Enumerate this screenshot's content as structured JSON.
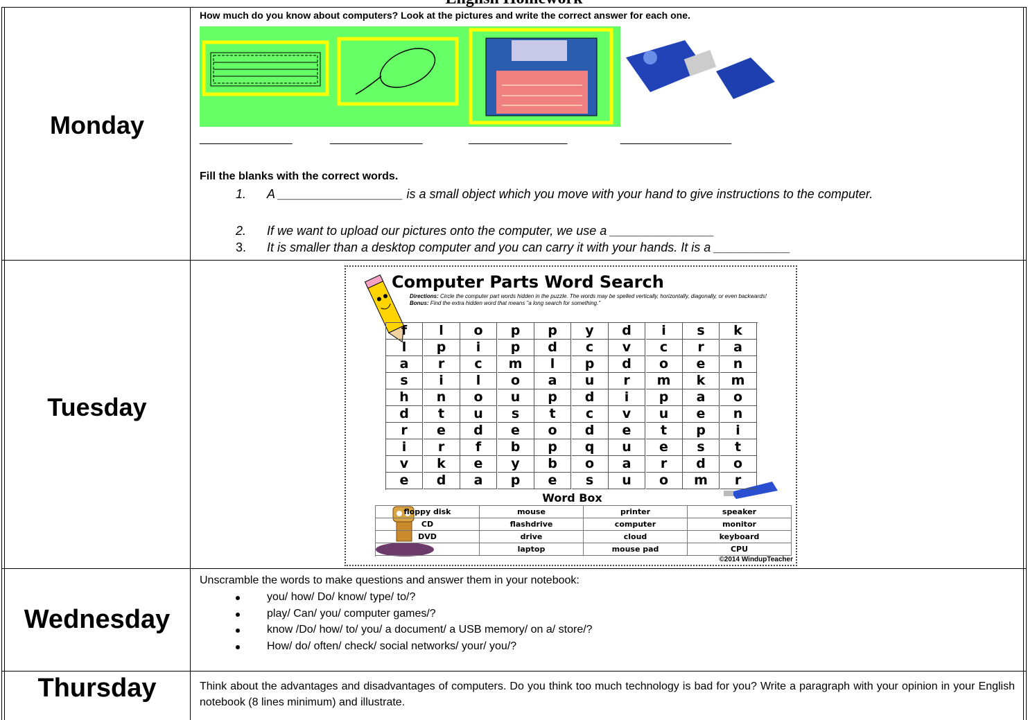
{
  "title": "English Homework",
  "monday": {
    "label": "Monday",
    "question": "How much do you know about computers? Look at the pictures and write the correct answer for each one.",
    "blanks": [
      "_______________",
      "_______________",
      "________________",
      "__________________"
    ],
    "fill_title": "Fill the blanks with the correct words.",
    "items": [
      {
        "number": "1.",
        "text": "A __________________ is a small object which you move with your hand to give instructions to the computer."
      },
      {
        "number": "2.",
        "text": "If we want to upload our pictures onto the computer, we use a _______________"
      },
      {
        "number": "3.",
        "text": "It is smaller than a desktop computer and you can carry it with your hands. It is a ___________"
      }
    ]
  },
  "tuesday": {
    "label": "Tuesday",
    "puzzle": {
      "title": "Computer Parts Word Search",
      "directions_label": "Directions:",
      "directions": "Circle the computer part words hidden in the puzzle. The words may be spelled vertically, horizontally, diagonally, or even backwards!",
      "bonus_label": "Bonus:",
      "bonus": "Find the extra hidden word that means \"a long search for something.\"",
      "grid": [
        [
          "f",
          "l",
          "o",
          "p",
          "p",
          "y",
          "d",
          "i",
          "s",
          "k"
        ],
        [
          "l",
          "p",
          "i",
          "p",
          "d",
          "c",
          "v",
          "c",
          "r",
          "a"
        ],
        [
          "a",
          "r",
          "c",
          "m",
          "l",
          "p",
          "d",
          "o",
          "e",
          "n"
        ],
        [
          "s",
          "i",
          "l",
          "o",
          "a",
          "u",
          "r",
          "m",
          "k",
          "m"
        ],
        [
          "h",
          "n",
          "o",
          "u",
          "p",
          "d",
          "i",
          "p",
          "a",
          "o"
        ],
        [
          "d",
          "t",
          "u",
          "s",
          "t",
          "c",
          "v",
          "u",
          "e",
          "n"
        ],
        [
          "r",
          "e",
          "d",
          "e",
          "o",
          "d",
          "e",
          "t",
          "p",
          "i"
        ],
        [
          "i",
          "r",
          "f",
          "b",
          "p",
          "q",
          "u",
          "e",
          "s",
          "t"
        ],
        [
          "v",
          "k",
          "e",
          "y",
          "b",
          "o",
          "a",
          "r",
          "d",
          "o"
        ],
        [
          "e",
          "d",
          "a",
          "p",
          "e",
          "s",
          "u",
          "o",
          "m",
          "r"
        ]
      ],
      "word_box_title": "Word Box",
      "word_box": [
        [
          "floppy disk",
          "mouse",
          "printer",
          "speaker"
        ],
        [
          "CD",
          "flashdrive",
          "computer",
          "monitor"
        ],
        [
          "DVD",
          "drive",
          "cloud",
          "keyboard"
        ],
        [
          null,
          "laptop",
          "mouse pad",
          "CPU"
        ]
      ],
      "copyright": "©2014 WindupTeacher"
    }
  },
  "wednesday": {
    "label": "Wednesday",
    "instruction": "Unscramble the words to make questions and answer them in your notebook:",
    "bullets": [
      "you/ how/ Do/ know/ type/ to/?",
      "play/ Can/ you/ computer games/?",
      "know /Do/ how/ to/ you/ a document/ a USB memory/ on a/ store/?",
      "How/ do/ often/ check/ social networks/ your/ you/?"
    ]
  },
  "thursday": {
    "label": "Thursday",
    "text": "Think about the advantages and disadvantages of computers. Do you think too much technology is bad for you? Write a paragraph with your opinion in your English notebook (8 lines minimum) and illustrate."
  }
}
